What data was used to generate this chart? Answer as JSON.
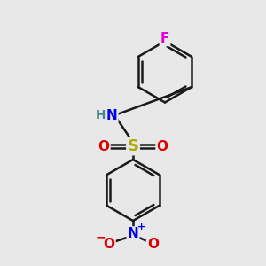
{
  "bg_color": "#e8e8e8",
  "bond_color": "#1a1a1a",
  "bond_width": 1.8,
  "atom_colors": {
    "F": "#dd00dd",
    "N_amine": "#0000ee",
    "H": "#448888",
    "S": "#aaaa00",
    "O": "#dd0000",
    "N_nitro": "#0000ee"
  },
  "font_size": 11,
  "figsize": [
    3.0,
    3.0
  ],
  "dpi": 100,
  "xlim": [
    0,
    10
  ],
  "ylim": [
    0,
    10
  ]
}
